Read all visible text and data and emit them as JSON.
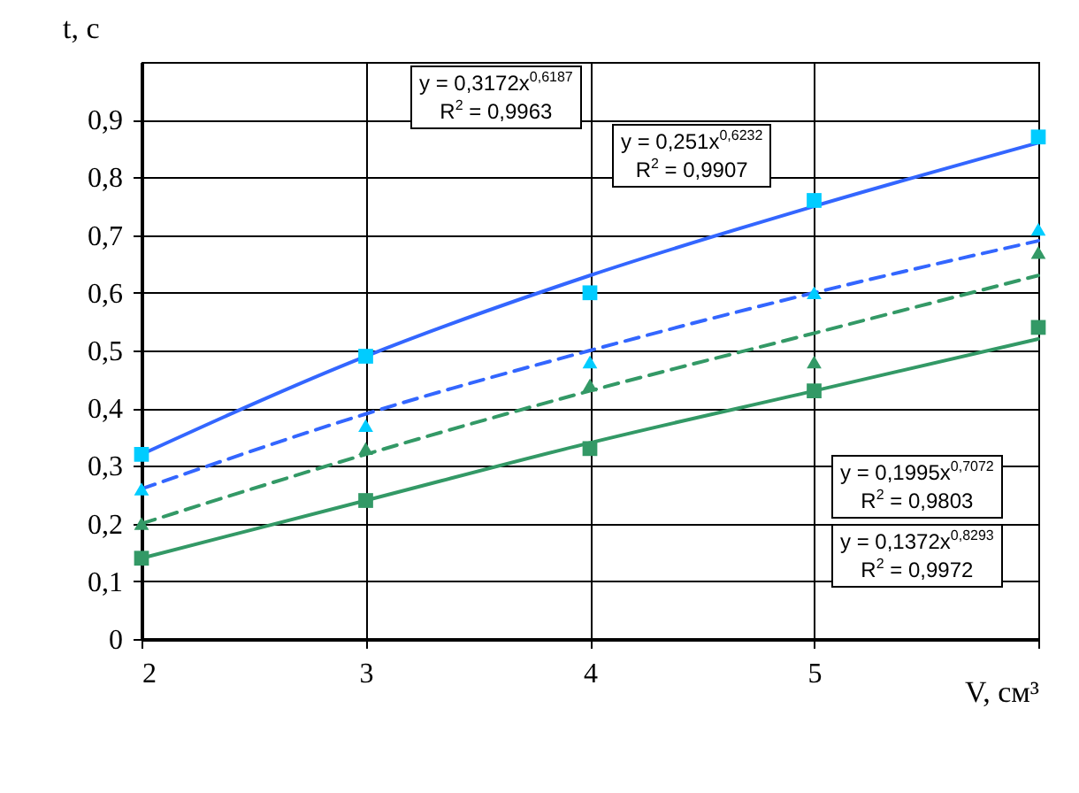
{
  "chart_data": {
    "type": "line",
    "xlabel": "V, см³",
    "ylabel": "t, с",
    "x": [
      2,
      3,
      4,
      5,
      6
    ],
    "xlim": [
      2,
      6
    ],
    "xticks": [
      2,
      3,
      4,
      5,
      {
        "value": 6,
        "label": null
      }
    ],
    "ylim": [
      0,
      1
    ],
    "yticks": [
      0,
      {
        "value": 0.1,
        "label": "0,1"
      },
      {
        "value": 0.2,
        "label": "0,2"
      },
      {
        "value": 0.3,
        "label": "0,3"
      },
      {
        "value": 0.4,
        "label": "0,4"
      },
      {
        "value": 0.5,
        "label": "0,5"
      },
      {
        "value": 0.6,
        "label": "0,6"
      },
      {
        "value": 0.7,
        "label": "0,7"
      },
      {
        "value": 0.8,
        "label": "0,8"
      },
      {
        "value": 0.9,
        "label": "0,9"
      }
    ],
    "grid": true,
    "series": [
      {
        "color": "#3366ff",
        "line_style": "solid",
        "marker": "none",
        "values": [
          0.32,
          0.49,
          0.63,
          0.75,
          0.86
        ]
      },
      {
        "color": "#3366ff",
        "line_style": "dashed",
        "marker": "none",
        "values": [
          0.26,
          0.39,
          0.5,
          0.6,
          0.69
        ]
      },
      {
        "color": "#339966",
        "line_style": "dashed",
        "marker": "none",
        "values": [
          0.2,
          0.32,
          0.43,
          0.53,
          0.63
        ]
      },
      {
        "color": "#339966",
        "line_style": "solid",
        "marker": "none",
        "values": [
          0.14,
          0.24,
          0.34,
          0.43,
          0.52
        ]
      },
      {
        "type": "scatter",
        "color": "#00ccff",
        "marker": "square",
        "values": [
          0.32,
          0.49,
          0.6,
          0.76,
          0.87
        ]
      },
      {
        "type": "scatter",
        "color": "#00ccff",
        "marker": "triangle",
        "values": [
          0.26,
          0.37,
          0.48,
          0.6,
          0.71
        ]
      },
      {
        "type": "scatter",
        "color": "#339966",
        "marker": "triangle",
        "values": [
          0.2,
          0.33,
          0.44,
          0.48,
          0.67
        ]
      },
      {
        "type": "scatter",
        "color": "#339966",
        "marker": "square",
        "values": [
          0.14,
          0.24,
          0.33,
          0.43,
          0.54
        ]
      }
    ],
    "annotations": [
      "y = 0,3172x$^{0,6187}$\nR$^{2}$ = 0,9963",
      "y = 0,251x$^{0,6232}$\nR$^{2}$ = 0,9907",
      "y = 0,1995x$^{0,7072}$\nR$^{2}$ = 0,9803",
      "y = 0,1372x$^{0,8293}$\nR$^{2}$ = 0,9972"
    ]
  }
}
